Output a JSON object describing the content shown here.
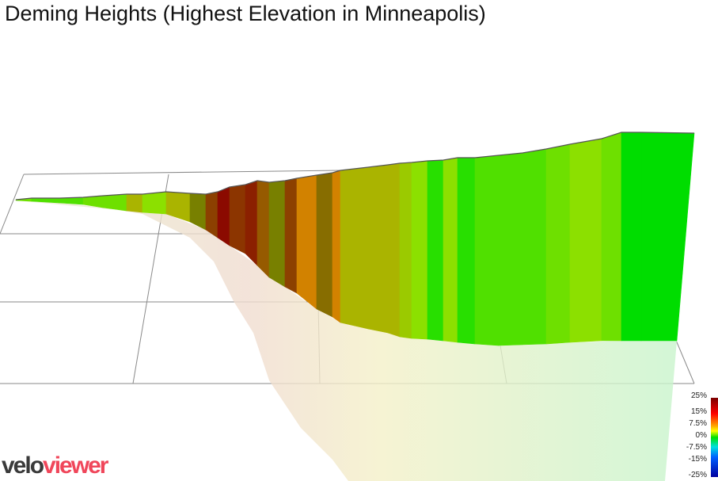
{
  "title": "Deming Heights (Highest Elevation in Minneapolis)",
  "chart_data": {
    "type": "3d-elevation-profile",
    "title": "Deming Heights (Highest Elevation in Minneapolis)",
    "color_scale": {
      "labels": [
        "25%",
        "15%",
        "7.5%",
        "0%",
        "-7.5%",
        "-15%",
        "-25%"
      ],
      "range": [
        -25,
        25
      ]
    },
    "segment_gradients_percent": [
      3,
      2,
      2,
      3,
      3,
      6,
      4,
      6,
      8,
      13,
      20,
      14,
      16,
      10,
      8,
      13,
      11,
      9,
      11,
      6,
      6,
      6,
      5,
      4,
      1,
      4,
      1,
      2,
      2,
      2,
      3,
      4,
      3,
      0,
      0
    ],
    "grid": true
  },
  "logo": {
    "part1": "velo",
    "part2": "viewer"
  }
}
